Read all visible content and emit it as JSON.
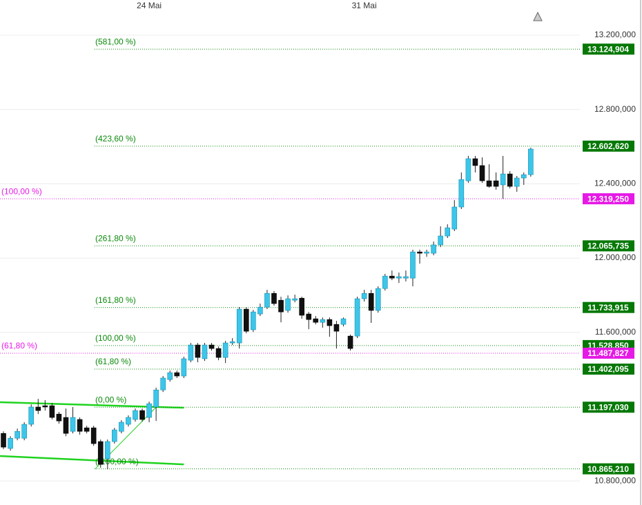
{
  "chart_data": {
    "type": "candlestick",
    "categories": [
      null,
      null,
      null,
      null,
      null,
      null,
      null,
      null,
      null,
      null,
      null,
      null,
      null,
      null,
      null,
      null,
      null,
      null,
      null,
      null,
      null,
      "24 Mai",
      null,
      null,
      null,
      null,
      null,
      null,
      null,
      null,
      null,
      null,
      null,
      null,
      null,
      null,
      null,
      null,
      null,
      null,
      null,
      null,
      null,
      null,
      null,
      null,
      null,
      null,
      null,
      null,
      null,
      null,
      "31 Mai",
      null,
      null,
      null,
      null,
      null,
      null,
      null,
      null,
      null,
      null,
      null,
      null,
      null,
      null,
      null,
      null,
      null,
      null,
      null,
      null,
      null,
      null,
      null,
      null
    ],
    "open": [
      11056,
      10975,
      11030,
      11030,
      11105,
      11198,
      11205,
      11205,
      11160,
      11142,
      11067,
      11131,
      11086,
      11086,
      11012,
      10919,
      11012,
      11067,
      11105,
      11131,
      11179,
      11142,
      11198,
      11290,
      11346,
      11383,
      11365,
      11450,
      11532,
      11458,
      11532,
      11513,
      11465,
      11543,
      11543,
      11725,
      11614,
      11699,
      11736,
      11810,
      11773,
      11718,
      11773,
      11784,
      11699,
      11673,
      11654,
      11669,
      11643,
      11643,
      11580,
      11580,
      11781,
      11810,
      11718,
      11836,
      11903,
      11892,
      11892,
      11892,
      12033,
      12026,
      12026,
      12071,
      12119,
      12156,
      12275,
      12416,
      12535,
      12498,
      12416,
      12416,
      12394,
      12453,
      12386,
      12431,
      12449
    ],
    "high": [
      11067,
      11041,
      11082,
      11116,
      11212,
      11242,
      11235,
      11220,
      11172,
      11190,
      11198,
      11142,
      11097,
      11097,
      11023,
      11023,
      11086,
      11127,
      11153,
      11190,
      11190,
      11227,
      11302,
      11365,
      11394,
      11394,
      11469,
      11543,
      11543,
      11543,
      11543,
      11524,
      11554,
      11569,
      11736,
      11736,
      11721,
      11755,
      11829,
      11822,
      11792,
      11799,
      11803,
      11792,
      11710,
      11688,
      11680,
      11680,
      11662,
      11680,
      11588,
      11792,
      11829,
      11829,
      11848,
      11915,
      11933,
      11922,
      11933,
      12045,
      12045,
      12045,
      12089,
      12171,
      12182,
      12312,
      12461,
      12550,
      12550,
      12542,
      12505,
      12461,
      12550,
      12468,
      12442,
      12461,
      12594
    ],
    "low": [
      10971,
      10963,
      11019,
      11019,
      11093,
      11160,
      11179,
      11131,
      11108,
      11041,
      11056,
      11049,
      11056,
      10989,
      10871,
      10863,
      11001,
      11056,
      11093,
      11119,
      11119,
      11116,
      11123,
      11279,
      11335,
      11354,
      11354,
      11439,
      11439,
      11446,
      11502,
      11450,
      11435,
      11532,
      11513,
      11595,
      11602,
      11688,
      11725,
      11744,
      11654,
      11706,
      11762,
      11673,
      11617,
      11643,
      11625,
      11576,
      11513,
      11632,
      11502,
      11569,
      11766,
      11651,
      11706,
      11825,
      11881,
      11866,
      11874,
      11848,
      11970,
      12007,
      12015,
      12059,
      12108,
      12145,
      12264,
      12405,
      12461,
      12405,
      12379,
      12368,
      12319,
      12375,
      12357,
      12394,
      12438
    ],
    "close": [
      10982,
      11030,
      11067,
      11105,
      11198,
      11179,
      11198,
      11142,
      11123,
      11056,
      11142,
      11067,
      11067,
      11001,
      10889,
      11012,
      11075,
      11116,
      11142,
      11179,
      11131,
      11216,
      11290,
      11354,
      11383,
      11365,
      11458,
      11532,
      11465,
      11532,
      11513,
      11465,
      11543,
      11550,
      11725,
      11606,
      11710,
      11736,
      11810,
      11755,
      11710,
      11781,
      11781,
      11692,
      11669,
      11654,
      11669,
      11636,
      11606,
      11673,
      11513,
      11781,
      11810,
      11718,
      11836,
      11903,
      11892,
      11900,
      11900,
      12033,
      12026,
      12033,
      12071,
      12119,
      12163,
      12275,
      12423,
      12535,
      12498,
      12416,
      12386,
      12386,
      12453,
      12386,
      12431,
      12449,
      12587
    ],
    "up_color": "#3cc6ea",
    "down_color": "#111111",
    "ylim": [
      10670.5,
      13389.4
    ],
    "yticks": [
      {
        "value": 13200,
        "label": "13.200,000"
      },
      {
        "value": 12800,
        "label": "12.800,000"
      },
      {
        "value": 12400,
        "label": "12.400,000"
      },
      {
        "value": 12000,
        "label": "12.000,000"
      },
      {
        "value": 11600,
        "label": "11.600,000"
      },
      {
        "value": 10800,
        "label": "10.800,000"
      }
    ],
    "grid": true,
    "fib_levels": [
      {
        "label": "(581,00 %)",
        "value": 13124.904,
        "value_label": "13.124,904",
        "color": "#0a8a0a"
      },
      {
        "label": "(423,60 %)",
        "value": 12602.62,
        "value_label": "12.602,620",
        "color": "#0a8a0a"
      },
      {
        "label": "(261,80 %)",
        "value": 12065.735,
        "value_label": "12.065,735",
        "color": "#0a8a0a"
      },
      {
        "label": "(161,80 %)",
        "value": 11733.915,
        "value_label": "11.733,915",
        "color": "#0a8a0a"
      },
      {
        "label": "(100,00 %)",
        "value": 11528.85,
        "value_label": "11.528,850",
        "color": "#0a8a0a"
      },
      {
        "label": "(61,80 %)",
        "value": 11402.095,
        "value_label": "11.402,095",
        "color": "#0a8a0a"
      },
      {
        "label": "(0,00 %)",
        "value": 11197.03,
        "value_label": "11.197,030",
        "color": "#0a8a0a"
      },
      {
        "label": "(-100,00 %)",
        "value": 10865.21,
        "value_label": "10.865,210",
        "color": "#0a8a0a"
      },
      {
        "label": "(100,00 %)",
        "value": 12319.25,
        "value_label": "12.319,250",
        "color": "#e619e6"
      },
      {
        "label": "(61,80 %)",
        "value": 11487.827,
        "value_label": "11.487,827",
        "color": "#e619e6"
      }
    ],
    "trendlines": [
      {
        "color": "#1ed31e",
        "values": [
          11224,
          11194
        ]
      },
      {
        "color": "#1ed31e",
        "values": [
          10934,
          10889
        ]
      }
    ]
  }
}
